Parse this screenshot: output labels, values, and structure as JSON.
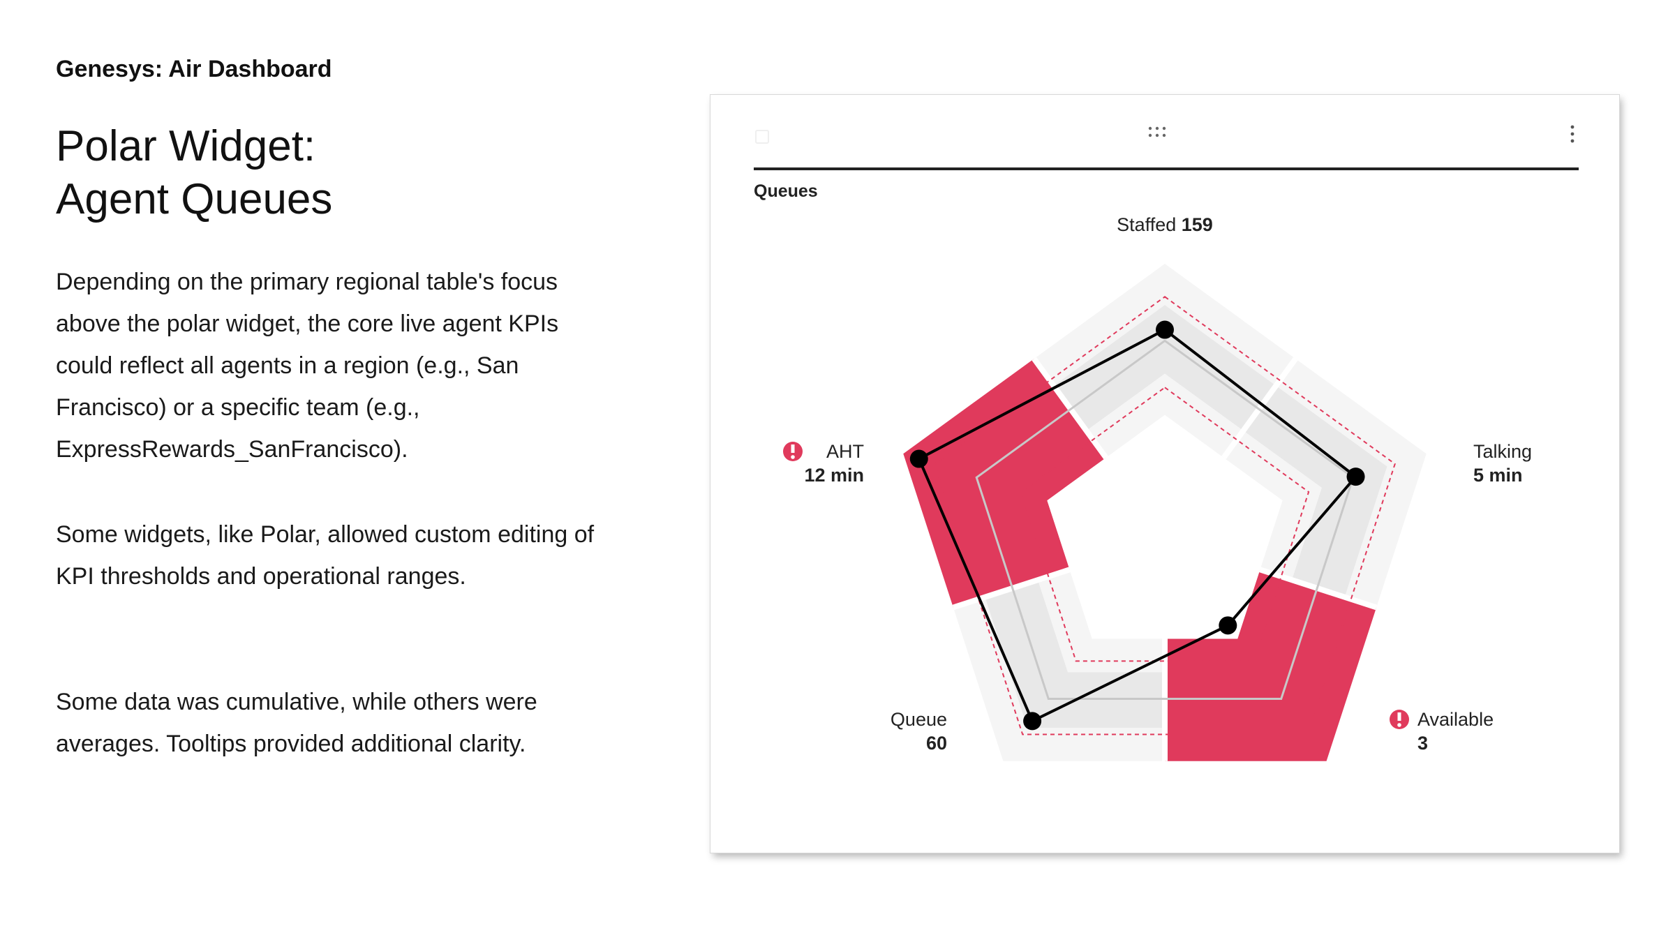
{
  "page": {
    "eyebrow": "Genesys: Air Dashboard",
    "title_line1": "Polar Widget:",
    "title_line2": "Agent Queues",
    "paragraph1": "Depending on the primary regional table's focus above the polar widget, the core live agent KPIs could reflect all agents in a region (e.g., San Francisco) or a specific team (e.g., ExpressRewards_SanFrancisco).",
    "paragraph2": "Some widgets, like Polar, allowed custom editing of KPI thresholds and operational ranges.",
    "paragraph3": "Some data was cumulative, while others were averages. Tooltips provided additional clarity."
  },
  "widget": {
    "label": "Queues",
    "drag_icon": "drag-handle-icon",
    "menu_icon": "kebab-menu-icon",
    "colors": {
      "alert": "#e03a5c",
      "zone_outer": "#f5f5f5",
      "zone_mid": "#e8e8e8",
      "line": "#000000",
      "threshold": "#e03a5c"
    }
  },
  "chart_data": {
    "type": "radar",
    "axes": [
      {
        "name": "Staffed",
        "value": "159",
        "alert": false,
        "level": 0.76
      },
      {
        "name": "Talking",
        "value": "5 min",
        "alert": false,
        "level": 0.73
      },
      {
        "name": "Available",
        "value": "3",
        "alert": true,
        "level": 0.39
      },
      {
        "name": "Queue",
        "value": "60",
        "alert": false,
        "level": 0.82
      },
      {
        "name": "AHT",
        "value": "12 min",
        "alert": true,
        "level": 0.94
      }
    ],
    "grid": true,
    "alert_icon": "exclamation-circle-icon"
  }
}
